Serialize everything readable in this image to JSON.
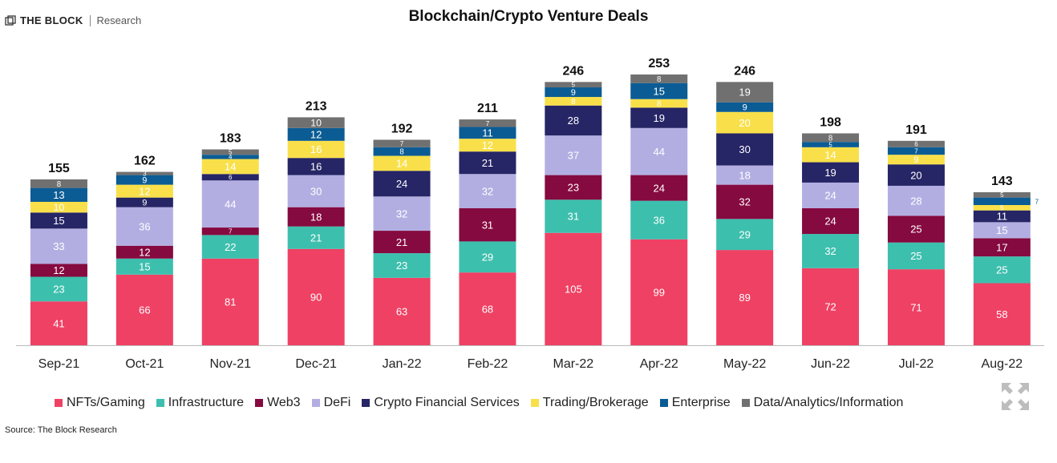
{
  "header": {
    "brand": "THE BLOCK",
    "brand_sub": "Research",
    "logo_icon": "cube-logo-icon"
  },
  "source_note": "Source: The Block Research",
  "expand_icon": "expand-arrows-icon",
  "colors": {
    "NFTs/Gaming": "#ef4164",
    "Infrastructure": "#3dbfae",
    "Web3": "#850a3f",
    "DeFi": "#b3aee2",
    "Crypto Financial Services": "#262566",
    "Trading/Brokerage": "#f9e04a",
    "Enterprise": "#0b5c94",
    "Data/Analytics/Information": "#707070"
  },
  "chart_data": {
    "type": "bar",
    "stacked": true,
    "title": "Blockchain/Crypto Venture Deals",
    "xlabel": "",
    "ylabel": "",
    "legend_position": "bottom",
    "grid": false,
    "categories": [
      "Sep-21",
      "Oct-21",
      "Nov-21",
      "Dec-21",
      "Jan-22",
      "Feb-22",
      "Mar-22",
      "Apr-22",
      "May-22",
      "Jun-22",
      "Jul-22",
      "Aug-22"
    ],
    "totals": [
      155,
      162,
      183,
      213,
      192,
      211,
      246,
      253,
      246,
      198,
      191,
      143
    ],
    "series": [
      {
        "name": "NFTs/Gaming",
        "values": [
          41,
          66,
          81,
          90,
          63,
          68,
          105,
          99,
          89,
          72,
          71,
          58
        ]
      },
      {
        "name": "Infrastructure",
        "values": [
          23,
          15,
          22,
          21,
          23,
          29,
          31,
          36,
          29,
          32,
          25,
          25
        ]
      },
      {
        "name": "Web3",
        "values": [
          12,
          12,
          7,
          18,
          21,
          31,
          23,
          24,
          32,
          24,
          25,
          17
        ]
      },
      {
        "name": "DeFi",
        "values": [
          33,
          36,
          44,
          30,
          32,
          32,
          37,
          44,
          18,
          24,
          28,
          15
        ]
      },
      {
        "name": "Crypto Financial Services",
        "values": [
          15,
          9,
          6,
          16,
          24,
          21,
          28,
          19,
          30,
          19,
          20,
          11
        ]
      },
      {
        "name": "Trading/Brokerage",
        "values": [
          10,
          12,
          14,
          16,
          14,
          12,
          8,
          8,
          20,
          14,
          9,
          5
        ]
      },
      {
        "name": "Enterprise",
        "values": [
          13,
          9,
          4,
          12,
          8,
          11,
          9,
          15,
          9,
          5,
          7,
          7
        ]
      },
      {
        "name": "Data/Analytics/Information",
        "values": [
          8,
          3,
          5,
          10,
          7,
          7,
          5,
          8,
          19,
          8,
          6,
          5
        ]
      }
    ]
  }
}
